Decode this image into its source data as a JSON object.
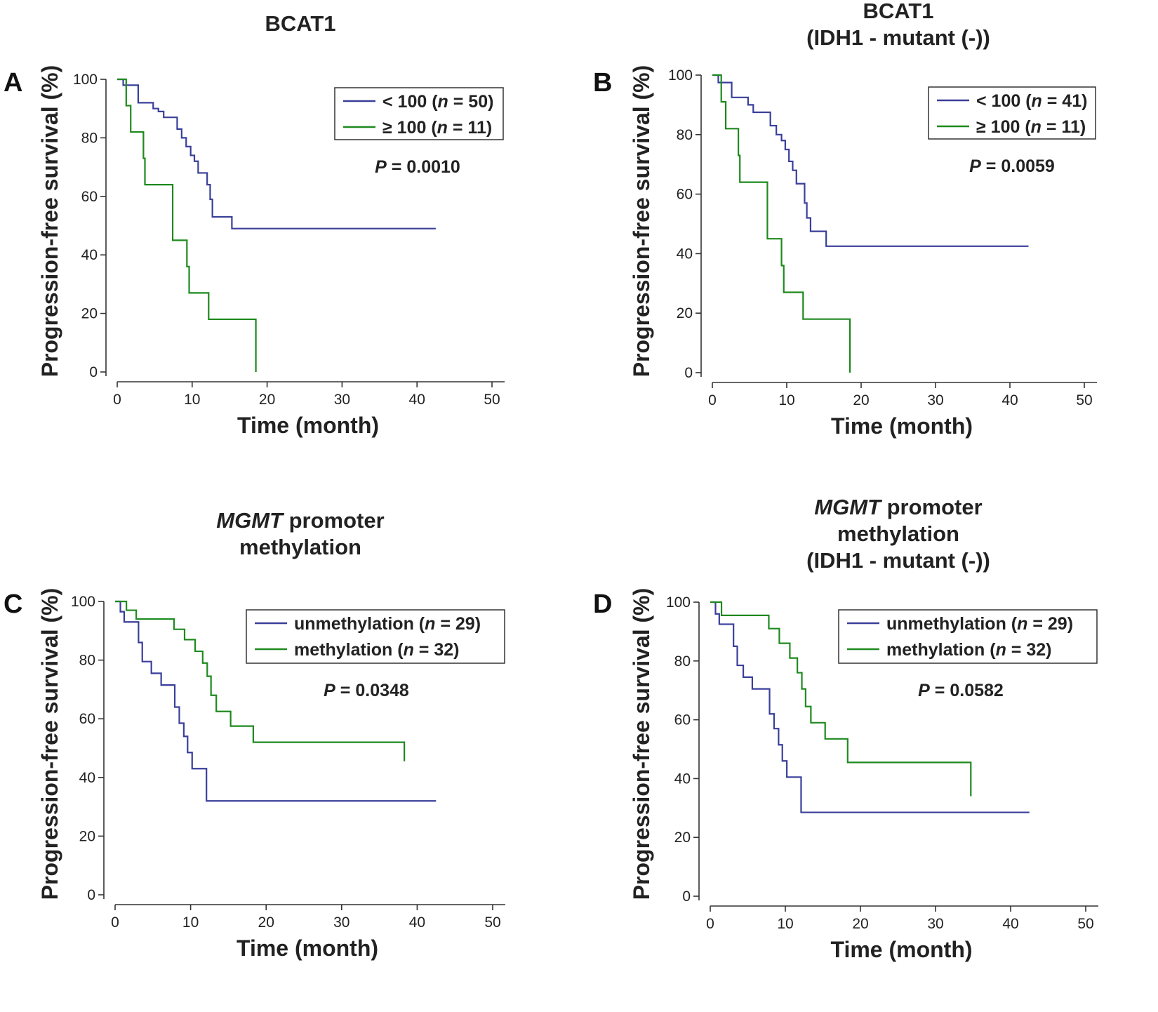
{
  "colors": {
    "blue": "#3a3f9a",
    "green": "#1e8a1e",
    "axis": "#333333"
  },
  "chart_data": [
    {
      "panel": "A",
      "type": "line",
      "title_lines": [
        [
          "BCAT1"
        ]
      ],
      "title_italic_first": false,
      "xlabel": "Time (month)",
      "ylabel": "Progression-free survival",
      "ylabel_unit": "(%)",
      "xlim": [
        0,
        50
      ],
      "ylim": [
        0,
        100
      ],
      "xticks": [
        "0",
        "10",
        "20",
        "30",
        "40",
        "50"
      ],
      "yticks": [
        "0",
        "20",
        "40",
        "60",
        "80",
        "100"
      ],
      "legend": [
        {
          "pre": "< 100 (",
          "n": "n",
          "post": " = 50)",
          "color": "blue"
        },
        {
          "pre": "≥ 100 (",
          "n": "n",
          "post": " = 11)",
          "color": "green"
        }
      ],
      "p_label": "P",
      "p_text": " = 0.0010",
      "series": [
        {
          "name": "< 100 (n = 50)",
          "color": "blue",
          "x": [
            0,
            0.8,
            1.2,
            2.8,
            4.8,
            5.5,
            6.2,
            8.0,
            8.6,
            9.2,
            9.8,
            10.3,
            10.8,
            11.3,
            12.0,
            12.4,
            12.7,
            13.2,
            15.3,
            42.5
          ],
          "y": [
            100,
            98,
            98,
            92,
            90,
            89,
            87,
            83,
            80,
            77,
            74,
            72,
            68,
            68,
            64,
            59,
            53,
            53,
            49,
            49
          ]
        },
        {
          "name": "≥ 100 (n = 11)",
          "color": "green",
          "x": [
            0,
            0.6,
            1.2,
            1.8,
            3.5,
            3.7,
            7.4,
            9.3,
            9.6,
            12.2,
            18.5
          ],
          "y": [
            100,
            100,
            91,
            82,
            73,
            64,
            45,
            36,
            27,
            18,
            0
          ]
        }
      ]
    },
    {
      "panel": "B",
      "type": "line",
      "title_lines": [
        [
          "BCAT1"
        ],
        [
          "(IDH1 - mutant (-))"
        ]
      ],
      "title_italic_first": false,
      "xlabel": "Time (month)",
      "ylabel": "Progression-free survival",
      "ylabel_unit": "(%)",
      "xlim": [
        0,
        50
      ],
      "ylim": [
        0,
        100
      ],
      "xticks": [
        "0",
        "10",
        "20",
        "30",
        "40",
        "50"
      ],
      "yticks": [
        "0",
        "20",
        "40",
        "60",
        "80",
        "100"
      ],
      "legend": [
        {
          "pre": "< 100 (",
          "n": "n",
          "post": " = 41)",
          "color": "blue"
        },
        {
          "pre": "≥ 100 (",
          "n": "n",
          "post": " = 11)",
          "color": "green"
        }
      ],
      "p_label": "P",
      "p_text": " = 0.0059",
      "series": [
        {
          "name": "< 100 (n = 41)",
          "color": "blue",
          "x": [
            0,
            0.8,
            1.2,
            2.6,
            4.8,
            5.5,
            7.3,
            7.8,
            8.6,
            9.3,
            9.8,
            10.3,
            10.8,
            11.3,
            12.0,
            12.4,
            12.7,
            13.2,
            15.3,
            42.5
          ],
          "y": [
            100,
            97.5,
            97.5,
            92.5,
            90,
            87.5,
            87.5,
            83,
            80,
            78,
            75,
            71,
            68,
            63.5,
            63.5,
            57,
            52,
            47.5,
            42.5,
            42.5
          ]
        },
        {
          "name": "≥ 100 (n = 11)",
          "color": "green",
          "x": [
            0,
            0.6,
            1.2,
            1.8,
            3.5,
            3.7,
            7.4,
            9.3,
            9.6,
            12.2,
            18.5
          ],
          "y": [
            100,
            100,
            91,
            82,
            73,
            64,
            45,
            36,
            27,
            18,
            0
          ]
        }
      ]
    },
    {
      "panel": "C",
      "type": "line",
      "title_lines": [
        [
          "MGMT",
          " promoter"
        ],
        [
          "methylation"
        ]
      ],
      "title_italic_first": true,
      "xlabel": "Time (month)",
      "ylabel": "Progression-free survival",
      "ylabel_unit": "(%)",
      "xlim": [
        0,
        50
      ],
      "ylim": [
        0,
        100
      ],
      "xticks": [
        "0",
        "10",
        "20",
        "30",
        "40",
        "50"
      ],
      "yticks": [
        "0",
        "20",
        "40",
        "60",
        "80",
        "100"
      ],
      "legend": [
        {
          "pre": "unmethylation (",
          "n": "n",
          "post": " = 29)",
          "color": "blue"
        },
        {
          "pre": "methylation (",
          "n": "n",
          "post": " = 32)",
          "color": "green"
        }
      ],
      "p_label": "P",
      "p_text": " = 0.0348",
      "series": [
        {
          "name": "unmethylation (n = 29)",
          "color": "blue",
          "x": [
            0,
            0.7,
            1.2,
            2.6,
            3.1,
            3.6,
            4.8,
            6.1,
            7.3,
            7.9,
            8.5,
            9.1,
            9.6,
            10.2,
            12.1,
            42.5
          ],
          "y": [
            100,
            96.5,
            93,
            93,
            86,
            79.5,
            75.5,
            71.5,
            71.5,
            64,
            58.5,
            54,
            48.5,
            43,
            32,
            32
          ]
        },
        {
          "name": "methylation (n = 32)",
          "color": "green",
          "x": [
            0,
            1.5,
            2.8,
            7.3,
            7.8,
            9.2,
            10.6,
            11.6,
            12.2,
            12.7,
            13.4,
            15.3,
            18.3,
            38.3
          ],
          "y": [
            100,
            97,
            94,
            94,
            90.5,
            87,
            83,
            79,
            74.5,
            68,
            62.5,
            57.5,
            52,
            45.5
          ]
        }
      ]
    },
    {
      "panel": "D",
      "type": "line",
      "title_lines": [
        [
          "MGMT",
          " promoter"
        ],
        [
          "methylation"
        ],
        [
          "(IDH1 - mutant (-))"
        ]
      ],
      "title_italic_first": true,
      "xlabel": "Time (month)",
      "ylabel": "Progression-free survival",
      "ylabel_unit": "(%)",
      "xlim": [
        0,
        50
      ],
      "ylim": [
        0,
        100
      ],
      "xticks": [
        "0",
        "10",
        "20",
        "30",
        "40",
        "50"
      ],
      "yticks": [
        "0",
        "20",
        "40",
        "60",
        "80",
        "100"
      ],
      "legend": [
        {
          "pre": "unmethylation (",
          "n": "n",
          "post": " = 29)",
          "color": "blue"
        },
        {
          "pre": "methylation (",
          "n": "n",
          "post": " = 32)",
          "color": "green"
        }
      ],
      "p_label": "P",
      "p_text": " = 0.0582",
      "series": [
        {
          "name": "unmethylation (n = 29)",
          "color": "blue",
          "x": [
            0,
            0.7,
            1.2,
            2.6,
            3.1,
            3.6,
            4.4,
            5.6,
            7.3,
            7.9,
            8.5,
            9.1,
            9.6,
            10.2,
            12.1,
            42.5
          ],
          "y": [
            100,
            96,
            92.5,
            92.5,
            85,
            78.5,
            74.5,
            70.5,
            70.5,
            62,
            57,
            51.5,
            46,
            40.5,
            28.5,
            28.5
          ]
        },
        {
          "name": "methylation (n = 32)",
          "color": "green",
          "x": [
            0,
            1.5,
            7.3,
            7.8,
            9.2,
            10.6,
            11.6,
            12.2,
            12.7,
            13.4,
            15.3,
            18.3,
            34.7
          ],
          "y": [
            100,
            95.5,
            95.5,
            91,
            86,
            81,
            76,
            70.5,
            64.5,
            59,
            53.5,
            45.5,
            34
          ]
        }
      ]
    }
  ]
}
